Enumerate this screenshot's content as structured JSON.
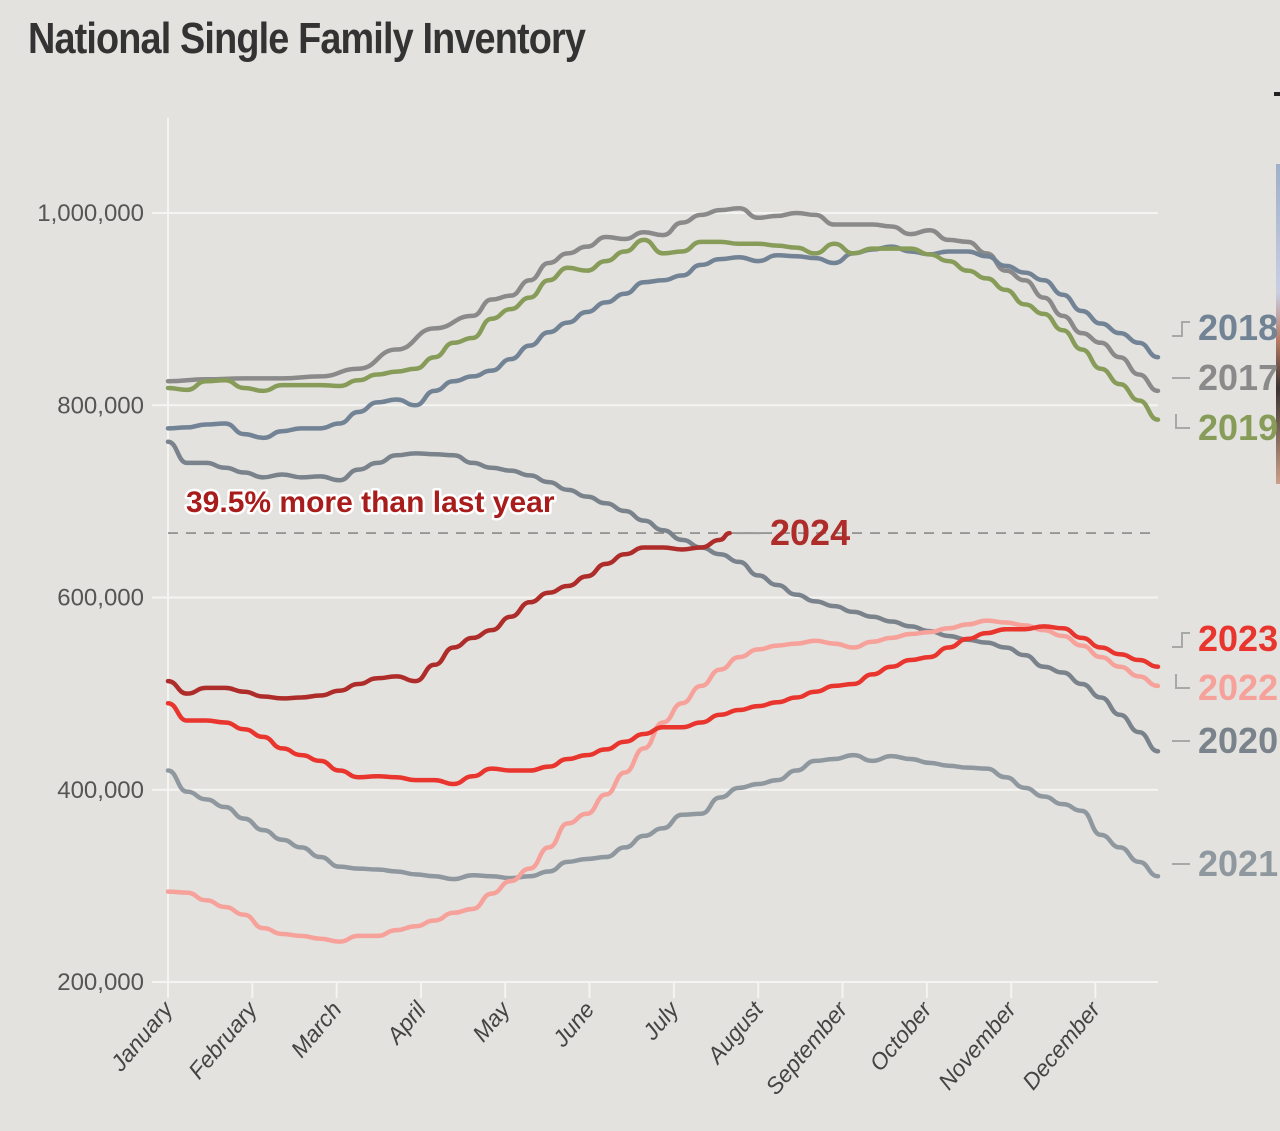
{
  "title": "National Single Family Inventory",
  "chart_data": {
    "type": "line",
    "title": "National Single Family Inventory",
    "xlabel": "",
    "ylabel": "",
    "x_unit": "week of year (0 = Jan 1, 52 = Dec 31)",
    "xlim": [
      0,
      52
    ],
    "ylim": [
      200000,
      1100000
    ],
    "y_ticks": [
      200000,
      400000,
      600000,
      800000,
      1000000
    ],
    "y_tick_labels": [
      "200,000",
      "400,000",
      "600,000",
      "800,000",
      "1,000,000"
    ],
    "x_ticks": [
      0,
      4.43,
      8.86,
      13.29,
      17.71,
      22.14,
      26.57,
      31.0,
      35.43,
      39.86,
      44.29,
      48.71
    ],
    "x_tick_labels": [
      "January",
      "February",
      "March",
      "April",
      "May",
      "June",
      "July",
      "August",
      "September",
      "October",
      "November",
      "December"
    ],
    "grid": "horizontal",
    "reference_line": {
      "value": 667000,
      "style": "dashed"
    },
    "annotation": "39.5% more than last year",
    "series": [
      {
        "name": "2017",
        "color": "#8a8a8a",
        "x": [
          0,
          2,
          4,
          6,
          8,
          10,
          12,
          14,
          16,
          17,
          18,
          19,
          20,
          21,
          22,
          23,
          24,
          25,
          26,
          27,
          28,
          29,
          30,
          31,
          32,
          33,
          34,
          35,
          36,
          37,
          38,
          39,
          40,
          41,
          42,
          43,
          44,
          45,
          46,
          47,
          48,
          49,
          50,
          51,
          52
        ],
        "y": [
          825000,
          827000,
          828000,
          828000,
          830000,
          838000,
          858000,
          880000,
          893000,
          910000,
          914000,
          930000,
          948000,
          958000,
          965000,
          975000,
          973000,
          980000,
          977000,
          990000,
          998000,
          1003000,
          1005000,
          995000,
          997000,
          1000000,
          998000,
          988000,
          988000,
          988000,
          986000,
          978000,
          982000,
          972000,
          970000,
          958000,
          940000,
          930000,
          912000,
          893000,
          875000,
          865000,
          850000,
          832000,
          815000
        ]
      },
      {
        "name": "2018",
        "color": "#728395",
        "x": [
          0,
          1,
          2,
          3,
          4,
          5,
          6,
          7,
          8,
          9,
          10,
          11,
          12,
          13,
          14,
          15,
          16,
          17,
          18,
          19,
          20,
          21,
          22,
          23,
          24,
          25,
          26,
          27,
          28,
          29,
          30,
          31,
          32,
          33,
          34,
          35,
          36,
          37,
          38,
          39,
          40,
          41,
          42,
          43,
          44,
          45,
          46,
          47,
          48,
          49,
          50,
          51,
          52
        ],
        "y": [
          776000,
          777000,
          780000,
          781000,
          770000,
          766000,
          773000,
          776000,
          776000,
          781000,
          793000,
          803000,
          806000,
          800000,
          815000,
          825000,
          830000,
          836000,
          848000,
          862000,
          876000,
          886000,
          897000,
          907000,
          916000,
          928000,
          930000,
          935000,
          946000,
          952000,
          954000,
          950000,
          956000,
          955000,
          953000,
          948000,
          958000,
          962000,
          965000,
          960000,
          957000,
          960000,
          960000,
          955000,
          945000,
          938000,
          930000,
          915000,
          898000,
          885000,
          875000,
          865000,
          850000
        ]
      },
      {
        "name": "2019",
        "color": "#889c5a",
        "x": [
          0,
          1,
          2,
          3,
          4,
          5,
          6,
          7,
          8,
          9,
          10,
          11,
          12,
          13,
          14,
          15,
          16,
          17,
          18,
          19,
          20,
          21,
          22,
          23,
          24,
          25,
          26,
          27,
          28,
          29,
          30,
          31,
          32,
          33,
          34,
          35,
          36,
          37,
          38,
          39,
          40,
          41,
          42,
          43,
          44,
          45,
          46,
          47,
          48,
          49,
          50,
          51,
          52
        ],
        "y": [
          818000,
          816000,
          825000,
          826000,
          818000,
          815000,
          821000,
          821000,
          821000,
          820000,
          826000,
          832000,
          835000,
          838000,
          850000,
          865000,
          870000,
          890000,
          900000,
          912000,
          930000,
          943000,
          940000,
          950000,
          960000,
          972000,
          958000,
          960000,
          970000,
          970000,
          968000,
          968000,
          966000,
          964000,
          958000,
          968000,
          958000,
          963000,
          963000,
          963000,
          957000,
          950000,
          940000,
          932000,
          920000,
          905000,
          895000,
          878000,
          858000,
          838000,
          822000,
          805000,
          785000
        ]
      },
      {
        "name": "2020",
        "color": "#7a838b",
        "x": [
          0,
          1,
          2,
          3,
          4,
          5,
          6,
          7,
          8,
          9,
          10,
          11,
          12,
          13,
          14,
          15,
          16,
          17,
          18,
          19,
          20,
          21,
          22,
          23,
          24,
          25,
          26,
          27,
          28,
          29,
          30,
          31,
          32,
          33,
          34,
          35,
          36,
          37,
          38,
          39,
          40,
          41,
          42,
          43,
          44,
          45,
          46,
          47,
          48,
          49,
          50,
          51,
          52
        ],
        "y": [
          762000,
          740000,
          740000,
          735000,
          730000,
          725000,
          728000,
          725000,
          726000,
          722000,
          733000,
          740000,
          748000,
          750000,
          749000,
          748000,
          740000,
          735000,
          732000,
          727000,
          720000,
          712000,
          705000,
          698000,
          690000,
          680000,
          670000,
          660000,
          652000,
          645000,
          637000,
          623000,
          613000,
          603000,
          596000,
          591000,
          585000,
          580000,
          575000,
          570000,
          565000,
          560000,
          556000,
          553000,
          548000,
          540000,
          528000,
          522000,
          510000,
          496000,
          478000,
          460000,
          440000
        ]
      },
      {
        "name": "2021",
        "color": "#8f989f",
        "x": [
          0,
          1,
          2,
          3,
          4,
          5,
          6,
          7,
          8,
          9,
          10,
          11,
          12,
          13,
          14,
          15,
          16,
          17,
          18,
          19,
          20,
          21,
          22,
          23,
          24,
          25,
          26,
          27,
          28,
          29,
          30,
          31,
          32,
          33,
          34,
          35,
          36,
          37,
          38,
          39,
          40,
          41,
          42,
          43,
          44,
          45,
          46,
          47,
          48,
          49,
          50,
          51,
          52
        ],
        "y": [
          420000,
          398000,
          390000,
          382000,
          370000,
          358000,
          348000,
          340000,
          330000,
          320000,
          318000,
          317000,
          315000,
          312000,
          310000,
          307000,
          311000,
          310000,
          308000,
          310000,
          315000,
          325000,
          328000,
          330000,
          340000,
          352000,
          360000,
          374000,
          375000,
          392000,
          402000,
          406000,
          410000,
          420000,
          430000,
          432000,
          436000,
          430000,
          435000,
          432000,
          428000,
          425000,
          423000,
          422000,
          413000,
          402000,
          393000,
          385000,
          378000,
          353000,
          340000,
          325000,
          310000
        ]
      },
      {
        "name": "2022",
        "color": "#f7a19b",
        "x": [
          0,
          1,
          2,
          3,
          4,
          5,
          6,
          7,
          8,
          9,
          10,
          11,
          12,
          13,
          14,
          15,
          16,
          17,
          18,
          19,
          20,
          21,
          22,
          23,
          24,
          25,
          26,
          27,
          28,
          29,
          30,
          31,
          32,
          33,
          34,
          35,
          36,
          37,
          38,
          39,
          40,
          41,
          42,
          43,
          44,
          45,
          46,
          47,
          48,
          49,
          50,
          51,
          52
        ],
        "y": [
          294000,
          293000,
          285000,
          278000,
          270000,
          256000,
          250000,
          248000,
          245000,
          242000,
          248000,
          248000,
          254000,
          258000,
          264000,
          272000,
          276000,
          292000,
          305000,
          318000,
          340000,
          365000,
          375000,
          395000,
          418000,
          443000,
          470000,
          490000,
          508000,
          525000,
          538000,
          546000,
          550000,
          552000,
          555000,
          552000,
          548000,
          554000,
          558000,
          562000,
          564000,
          568000,
          572000,
          576000,
          574000,
          571000,
          566000,
          560000,
          550000,
          538000,
          528000,
          518000,
          508000
        ]
      },
      {
        "name": "2023",
        "color": "#e8352d",
        "x": [
          0,
          1,
          2,
          3,
          4,
          5,
          6,
          7,
          8,
          9,
          10,
          11,
          12,
          13,
          14,
          15,
          16,
          17,
          18,
          19,
          20,
          21,
          22,
          23,
          24,
          25,
          26,
          27,
          28,
          29,
          30,
          31,
          32,
          33,
          34,
          35,
          36,
          37,
          38,
          39,
          40,
          41,
          42,
          43,
          44,
          45,
          46,
          47,
          48,
          49,
          50,
          51,
          52
        ],
        "y": [
          490000,
          472000,
          472000,
          470000,
          463000,
          455000,
          443000,
          436000,
          430000,
          420000,
          413000,
          414000,
          413000,
          410000,
          410000,
          406000,
          414000,
          422000,
          420000,
          420000,
          424000,
          432000,
          436000,
          442000,
          450000,
          458000,
          465000,
          465000,
          470000,
          478000,
          483000,
          487000,
          491000,
          496000,
          502000,
          508000,
          510000,
          520000,
          528000,
          535000,
          538000,
          548000,
          557000,
          563000,
          567000,
          567000,
          570000,
          568000,
          558000,
          548000,
          541000,
          535000,
          528000
        ]
      },
      {
        "name": "2024",
        "color": "#ae2d2a",
        "x": [
          0,
          1,
          2,
          3,
          4,
          5,
          6,
          7,
          8,
          9,
          10,
          11,
          12,
          13,
          14,
          15,
          16,
          17,
          18,
          19,
          20,
          21,
          22,
          23,
          24,
          25,
          26,
          27,
          28,
          29,
          29.5
        ],
        "y": [
          513000,
          500000,
          506000,
          506000,
          502000,
          497000,
          495000,
          496000,
          498000,
          503000,
          510000,
          516000,
          518000,
          513000,
          530000,
          548000,
          558000,
          566000,
          580000,
          595000,
          605000,
          612000,
          622000,
          635000,
          645000,
          652000,
          652000,
          650000,
          652000,
          660000,
          667000
        ]
      }
    ],
    "end_labels": [
      {
        "series": "2018",
        "text": "2018"
      },
      {
        "series": "2017",
        "text": "2017"
      },
      {
        "series": "2019",
        "text": "2019"
      },
      {
        "series": "2023",
        "text": "2023"
      },
      {
        "series": "2022",
        "text": "2022"
      },
      {
        "series": "2020",
        "text": "2020"
      },
      {
        "series": "2021",
        "text": "2021"
      },
      {
        "series": "2024",
        "text": "2024"
      }
    ]
  }
}
